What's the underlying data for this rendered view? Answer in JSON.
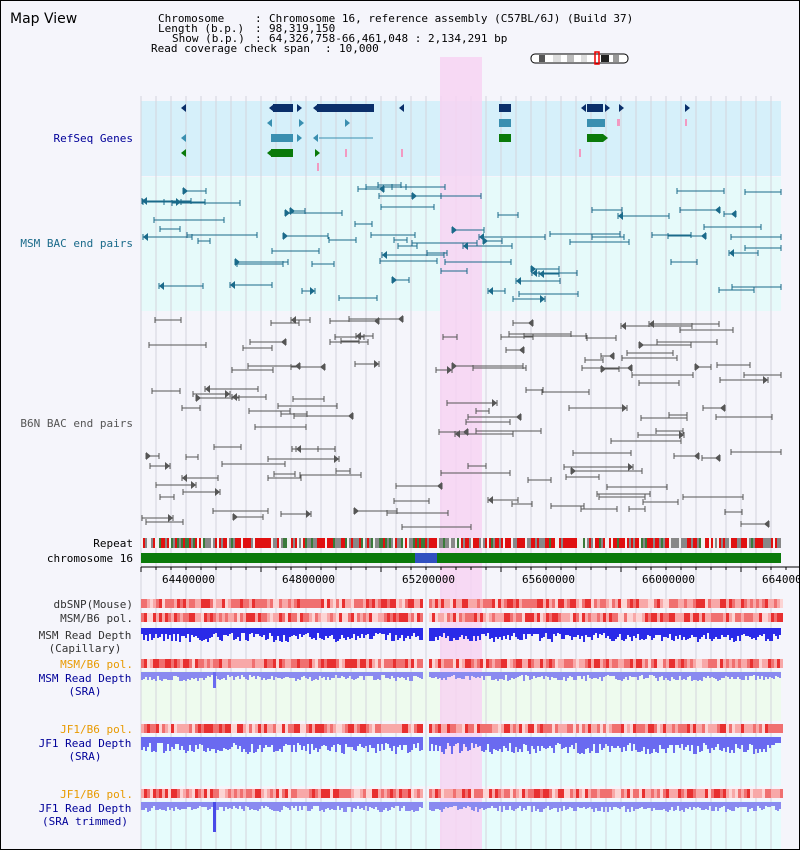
{
  "title": "Map View",
  "header": {
    "chromosome_label": "Chromosome",
    "chromosome_value": "Chromosome 16, reference assembly (C57BL/6J) (Build 37)",
    "length_label": "Length (b.p.)",
    "length_value": "98,319,150",
    "show_label": "Show (b.p.)",
    "show_value": "64,326,758-66,461,048 : 2,134,291 bp",
    "coverage_label": "Read coverage check span",
    "coverage_value": "10,000"
  },
  "tracks": {
    "refseq": "RefSeq Genes",
    "msm_bac": "MSM BAC end pairs",
    "b6n_bac": "B6N BAC end pairs",
    "repeat": "Repeat",
    "chromosome": "chromosome 16",
    "dbsnp": "dbSNP(Mouse)",
    "msm_b6_pol_1": "MSM/B6 pol.",
    "msm_read_depth_cap": "MSM Read Depth",
    "msm_read_depth_cap_sub": "(Capillary)",
    "msm_b6_pol_2": "MSM/B6 pol.",
    "msm_read_depth_sra": "MSM Read Depth",
    "msm_read_depth_sra_sub": "(SRA)",
    "jf1_b6_pol_1": "JF1/B6 pol.",
    "jf1_read_depth_sra": "JF1 Read Depth",
    "jf1_read_depth_sra_sub": "(SRA)",
    "jf1_b6_pol_2": "JF1/B6 pol.",
    "jf1_read_depth_trim": "JF1 Read Depth",
    "jf1_read_depth_trim_sub": "(SRA trimmed)"
  },
  "axis": {
    "ticks": [
      "64400000",
      "64800000",
      "65200000",
      "65600000",
      "66000000",
      "664000"
    ]
  },
  "colors": {
    "refseq_bg": "#d6f0fa",
    "msm_bg": "#e6fafa",
    "highlight": "#f7d4f2",
    "gene_dark": "#0a2f6a",
    "gene_mid": "#3a8fb0",
    "gene_green": "#0a7a0a",
    "gene_pink": "#f29ac2",
    "msm_line": "#1a6a8a",
    "b6n_line": "#555555",
    "chrom_green": "#0b7a0b",
    "label_blue": "#000099",
    "label_orange": "#e89a00"
  }
}
